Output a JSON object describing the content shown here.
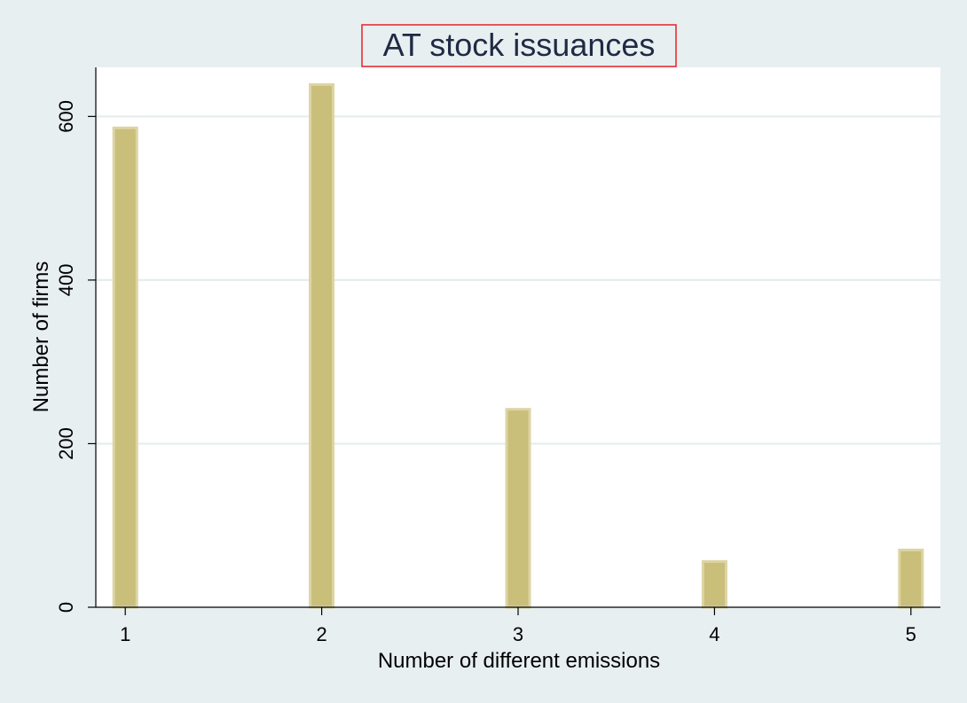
{
  "colors": {
    "outer_background": "#e8eff1",
    "plot_background": "#ffffff",
    "bar_fill": "#c9be7a",
    "bar_stroke": "#ddd4a4",
    "gridline": "#e3ecee",
    "axis": "#000000",
    "title_box_fill": "#e8eff1",
    "title_box_border": "#e8202a",
    "title_text": "#1f2a44"
  },
  "chart_data": {
    "type": "bar",
    "title": "AT stock issuances",
    "xlabel": "Number of different emissions",
    "ylabel": "Number of firms",
    "x": [
      1,
      2,
      3,
      4,
      5
    ],
    "values": [
      586,
      639,
      242,
      56,
      70
    ],
    "xticks": [
      "1",
      "2",
      "3",
      "4",
      "5"
    ],
    "yticks": [
      0,
      200,
      400,
      600
    ],
    "xlim": [
      0.85,
      5.15
    ],
    "ylim": [
      0,
      660
    ],
    "grid": true,
    "legend": "none"
  }
}
